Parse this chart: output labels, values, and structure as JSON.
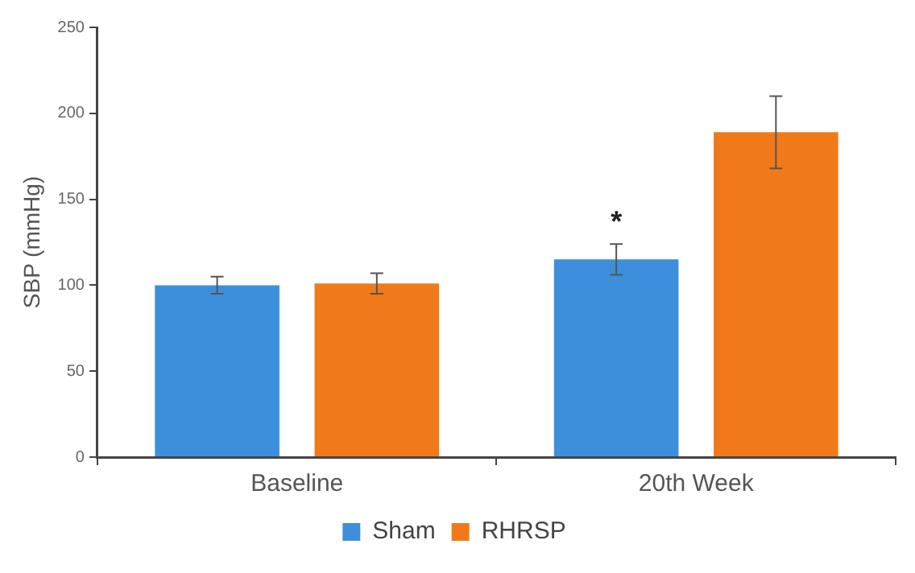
{
  "chart_data": {
    "type": "bar",
    "ylabel": "SBP (mmHg)",
    "categories": [
      "Baseline",
      "20th Week"
    ],
    "series": [
      {
        "name": "Sham",
        "color": "#3d8fdc",
        "values": [
          100,
          115
        ],
        "errors": [
          5,
          9
        ]
      },
      {
        "name": "RHRSP",
        "color": "#f07a1a",
        "values": [
          101,
          189
        ],
        "errors": [
          6,
          21
        ]
      }
    ],
    "ylim": [
      0,
      250
    ],
    "yticks": [
      0,
      50,
      100,
      150,
      200,
      250
    ],
    "grid": false,
    "legend": "bottom",
    "annotations": [
      "*"
    ]
  }
}
